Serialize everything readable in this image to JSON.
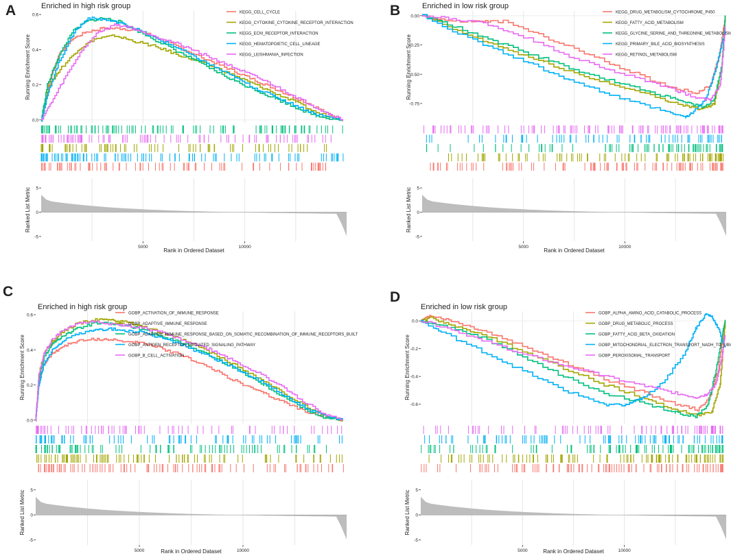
{
  "chart_data": [
    {
      "type": "line",
      "panel_letter": "A",
      "title": "Enriched in high risk group",
      "ylabel_top": "Running Enrichment Score",
      "ylabel_bottom": "Ranked List Metric",
      "xlabel": "Rank in Ordered Dataset",
      "x_ticks": [
        5000,
        10000
      ],
      "x_range": [
        0,
        15000
      ],
      "es_ticks": [
        0.0,
        0.2,
        0.4,
        0.6
      ],
      "es_tick_labels": [
        "0.0",
        "0.2",
        "0.4",
        "0.6"
      ],
      "es_range": [
        -0.02,
        0.62
      ],
      "metric_ticks": [
        5,
        0,
        -5
      ],
      "metric_range": [
        -6,
        7
      ],
      "metric_shape": "high",
      "series": [
        {
          "name": "KEGG_CELL_CYCLE",
          "color": "#F8766D",
          "x": [
            0,
            400,
            900,
            1500,
            2200,
            3000,
            4000,
            5000,
            6000,
            7000,
            8000,
            9000,
            10000,
            11000,
            12000,
            13000,
            14000,
            14800
          ],
          "y": [
            0.0,
            0.22,
            0.38,
            0.46,
            0.5,
            0.52,
            0.52,
            0.5,
            0.45,
            0.4,
            0.35,
            0.3,
            0.25,
            0.2,
            0.15,
            0.1,
            0.04,
            0.0
          ],
          "hit_bands": [
            4
          ]
        },
        {
          "name": "KEGG_CYTOKINE_CYTOKINE_RECEPTOR_INTERACTION",
          "color": "#A3A500",
          "x": [
            0,
            400,
            1000,
            1800,
            2600,
            3600,
            4500,
            5500,
            6500,
            7500,
            8500,
            9500,
            10500,
            11500,
            12500,
            13500,
            14800
          ],
          "y": [
            0.0,
            0.2,
            0.3,
            0.4,
            0.46,
            0.48,
            0.45,
            0.42,
            0.38,
            0.34,
            0.3,
            0.25,
            0.2,
            0.15,
            0.1,
            0.04,
            0.0
          ],
          "hit_bands": [
            2
          ]
        },
        {
          "name": "KEGG_ECM_RECEPTOR_INTERACTION",
          "color": "#00BF7D",
          "x": [
            0,
            300,
            800,
            1500,
            2200,
            3000,
            3800,
            4500,
            5500,
            6500,
            7500,
            8500,
            9500,
            10500,
            11500,
            12500,
            13500,
            14800
          ],
          "y": [
            0.0,
            0.2,
            0.35,
            0.5,
            0.56,
            0.58,
            0.56,
            0.52,
            0.46,
            0.4,
            0.34,
            0.28,
            0.22,
            0.17,
            0.12,
            0.07,
            0.02,
            0.0
          ],
          "hit_bands": [
            0
          ]
        },
        {
          "name": "KEGG_HEMATOPOIETIC_CELL_LINEAGE",
          "color": "#00B0F6",
          "x": [
            0,
            400,
            900,
            1600,
            2300,
            3100,
            3900,
            4600,
            5500,
            6500,
            7500,
            8500,
            9500,
            10500,
            11500,
            12500,
            13500,
            14800
          ],
          "y": [
            0.0,
            0.18,
            0.34,
            0.5,
            0.58,
            0.57,
            0.55,
            0.52,
            0.47,
            0.42,
            0.36,
            0.3,
            0.24,
            0.18,
            0.13,
            0.08,
            0.03,
            0.0
          ],
          "hit_bands": [
            3
          ]
        },
        {
          "name": "KEGG_LEISHMANIA_INFECTION",
          "color": "#E76BF3",
          "x": [
            0,
            500,
            1200,
            2000,
            2800,
            3600,
            4300,
            5000,
            6000,
            7000,
            8000,
            9000,
            10000,
            11000,
            12000,
            13000,
            14000,
            14800
          ],
          "y": [
            0.0,
            0.1,
            0.25,
            0.4,
            0.5,
            0.54,
            0.53,
            0.5,
            0.46,
            0.42,
            0.37,
            0.32,
            0.27,
            0.22,
            0.16,
            0.1,
            0.04,
            0.0
          ],
          "hit_bands": [
            1
          ]
        }
      ]
    },
    {
      "type": "line",
      "panel_letter": "B",
      "title": "Enriched in low risk group",
      "ylabel_top": "Running Enrichment Score",
      "ylabel_bottom": "Ranked List Metric",
      "xlabel": "Rank in Ordered Dataset",
      "x_ticks": [
        5000,
        10000
      ],
      "x_range": [
        0,
        15000
      ],
      "es_ticks": [
        0.0,
        -0.25,
        -0.5,
        -0.75
      ],
      "es_tick_labels": [
        "0.00",
        "-0.25",
        "-0.50",
        "-0.75"
      ],
      "es_range": [
        -0.92,
        0.04
      ],
      "metric_ticks": [
        5,
        0,
        -5
      ],
      "metric_range": [
        -6,
        7
      ],
      "metric_shape": "high",
      "series": [
        {
          "name": "KEGG_DRUG_METABOLISM_CYTOCHROME_P450",
          "color": "#F8766D",
          "x": [
            0,
            1500,
            3000,
            4000,
            6000,
            8000,
            10000,
            12000,
            13500,
            14200,
            14700,
            14950
          ],
          "y": [
            0.0,
            -0.05,
            -0.05,
            -0.05,
            -0.18,
            -0.32,
            -0.46,
            -0.6,
            -0.66,
            -0.6,
            -0.3,
            0.0
          ],
          "hit_bands": [
            4
          ]
        },
        {
          "name": "KEGG_FATTY_ACID_METABOLISM",
          "color": "#A3A500",
          "x": [
            0,
            2000,
            4000,
            6000,
            8000,
            10000,
            12000,
            13000,
            13800,
            14400,
            14800,
            14950
          ],
          "y": [
            0.0,
            -0.15,
            -0.28,
            -0.4,
            -0.52,
            -0.62,
            -0.72,
            -0.77,
            -0.8,
            -0.75,
            -0.4,
            0.0
          ],
          "hit_bands": [
            3
          ]
        },
        {
          "name": "KEGG_GLYCINE_SERINE_AND_THREONINE_METABOLISM",
          "color": "#00BF7D",
          "x": [
            0,
            2000,
            4000,
            6000,
            8000,
            10000,
            12000,
            13000,
            13800,
            14400,
            14800,
            14950
          ],
          "y": [
            0.0,
            -0.12,
            -0.25,
            -0.37,
            -0.49,
            -0.59,
            -0.69,
            -0.74,
            -0.78,
            -0.72,
            -0.4,
            0.0
          ],
          "hit_bands": [
            2
          ]
        },
        {
          "name": "KEGG_PRIMARY_BILE_ACID_BIOSYNTHESIS",
          "color": "#00B0F6",
          "x": [
            0,
            2000,
            4000,
            6000,
            8000,
            10000,
            12000,
            13000,
            13400,
            14000,
            14500,
            14950
          ],
          "y": [
            0.0,
            -0.17,
            -0.32,
            -0.46,
            -0.6,
            -0.72,
            -0.82,
            -0.87,
            -0.82,
            -0.7,
            -0.45,
            -0.1
          ],
          "hit_bands": [
            1
          ]
        },
        {
          "name": "KEGG_RETINOL_METABOLISM",
          "color": "#E76BF3",
          "x": [
            0,
            1500,
            3000,
            5000,
            7000,
            9000,
            11000,
            12500,
            13500,
            14200,
            14700,
            14950
          ],
          "y": [
            0.0,
            -0.03,
            -0.06,
            -0.18,
            -0.33,
            -0.45,
            -0.56,
            -0.64,
            -0.7,
            -0.72,
            -0.6,
            -0.1
          ],
          "hit_bands": [
            0
          ]
        }
      ]
    },
    {
      "type": "line",
      "panel_letter": "C",
      "title": "Enriched in high risk group",
      "ylabel_top": "Running Enrichment Score",
      "ylabel_bottom": "Ranked List Metric",
      "xlabel": "Rank in Ordered Dataset",
      "x_ticks": [
        5000,
        10000
      ],
      "x_range": [
        0,
        15000
      ],
      "es_ticks": [
        0.0,
        0.2,
        0.4,
        0.6
      ],
      "es_tick_labels": [
        "0.0",
        "0.2",
        "0.4",
        "0.6"
      ],
      "es_range": [
        -0.02,
        0.62
      ],
      "metric_ticks": [
        5,
        0,
        -5
      ],
      "metric_range": [
        -6,
        7
      ],
      "metric_shape": "high",
      "series": [
        {
          "name": "GOBP_ACTIVATION_OF_IMMUNE_RESPONSE",
          "color": "#F8766D",
          "x": [
            0,
            150,
            400,
            800,
            1300,
            2000,
            2800,
            3500,
            4200,
            5000,
            6000,
            7000,
            8000,
            9000,
            10000,
            11000,
            12000,
            13000,
            14000,
            14800
          ],
          "y": [
            0.0,
            0.22,
            0.32,
            0.38,
            0.42,
            0.45,
            0.46,
            0.46,
            0.45,
            0.44,
            0.41,
            0.37,
            0.32,
            0.26,
            0.2,
            0.15,
            0.1,
            0.05,
            0.02,
            0.0
          ],
          "hit_bands": [
            4
          ]
        },
        {
          "name": "GOBP_ADAPTIVE_IMMUNE_RESPONSE",
          "color": "#A3A500",
          "x": [
            0,
            150,
            400,
            800,
            1300,
            2000,
            2800,
            3500,
            4200,
            5000,
            6000,
            7000,
            8000,
            9000,
            10000,
            11000,
            12000,
            13000,
            14000,
            14800
          ],
          "y": [
            0.0,
            0.26,
            0.38,
            0.45,
            0.5,
            0.55,
            0.57,
            0.57,
            0.56,
            0.54,
            0.5,
            0.46,
            0.41,
            0.35,
            0.29,
            0.22,
            0.15,
            0.08,
            0.02,
            0.0
          ],
          "hit_bands": [
            3
          ]
        },
        {
          "name": "GOBP_ADAPTIVE_IMMUNE_RESPONSE_BASED_ON_SOMATIC_RECOMBINATION_OF_IMMUNE_RECEPTORS_BUILT",
          "color": "#00BF7D",
          "x": [
            0,
            150,
            400,
            800,
            1300,
            2000,
            2800,
            3500,
            4200,
            5000,
            6000,
            7000,
            8000,
            9000,
            10000,
            11000,
            12000,
            13000,
            14000,
            14800
          ],
          "y": [
            0.0,
            0.24,
            0.36,
            0.43,
            0.48,
            0.52,
            0.55,
            0.55,
            0.54,
            0.52,
            0.48,
            0.44,
            0.39,
            0.33,
            0.27,
            0.2,
            0.13,
            0.06,
            0.01,
            0.0
          ],
          "hit_bands": [
            2
          ]
        },
        {
          "name": "GOBP_ANTIGEN_RECEPTOR_MEDIATED_SIGNALING_PATHWAY",
          "color": "#00B0F6",
          "x": [
            0,
            150,
            400,
            800,
            1300,
            2000,
            2800,
            3500,
            4200,
            5000,
            6000,
            7000,
            8000,
            9000,
            10000,
            11000,
            12000,
            13000,
            14000,
            14800
          ],
          "y": [
            0.0,
            0.2,
            0.32,
            0.4,
            0.45,
            0.49,
            0.51,
            0.52,
            0.51,
            0.5,
            0.47,
            0.43,
            0.38,
            0.33,
            0.27,
            0.21,
            0.14,
            0.07,
            0.02,
            0.0
          ],
          "hit_bands": [
            1
          ]
        },
        {
          "name": "GOBP_B_CELL_ACTIVATION",
          "color": "#E76BF3",
          "x": [
            0,
            150,
            400,
            800,
            1300,
            2000,
            2800,
            3500,
            4200,
            5000,
            6000,
            7000,
            8000,
            9000,
            10000,
            11000,
            12000,
            13000,
            14000,
            14800
          ],
          "y": [
            0.0,
            0.25,
            0.38,
            0.46,
            0.51,
            0.55,
            0.56,
            0.55,
            0.54,
            0.53,
            0.5,
            0.46,
            0.42,
            0.37,
            0.31,
            0.25,
            0.18,
            0.1,
            0.03,
            0.0
          ],
          "hit_bands": [
            0
          ]
        }
      ]
    },
    {
      "type": "line",
      "panel_letter": "D",
      "title": "Enriched in low risk group",
      "ylabel_top": "Running Enrichment Score",
      "ylabel_bottom": "Ranked List Metric",
      "xlabel": "Rank in Ordered Dataset",
      "x_ticks": [
        5000,
        10000
      ],
      "x_range": [
        0,
        15000
      ],
      "es_ticks": [
        0.0,
        -0.2,
        -0.4,
        -0.6
      ],
      "es_tick_labels": [
        "0.0",
        "-0.2",
        "-0.4",
        "-0.6"
      ],
      "es_range": [
        -0.74,
        0.07
      ],
      "metric_ticks": [
        5,
        0,
        -5
      ],
      "metric_range": [
        -6,
        7
      ],
      "metric_shape": "low",
      "series": [
        {
          "name": "GOBP_ALPHA_AMINO_ACID_CATABOLIC_PROCESS",
          "color": "#F8766D",
          "x": [
            0,
            500,
            1500,
            3000,
            5000,
            7000,
            9000,
            11000,
            12500,
            13600,
            14200,
            14600,
            14950
          ],
          "y": [
            0.0,
            0.04,
            0.0,
            -0.07,
            -0.18,
            -0.3,
            -0.42,
            -0.52,
            -0.6,
            -0.64,
            -0.55,
            -0.35,
            0.0
          ],
          "hit_bands": [
            4
          ]
        },
        {
          "name": "GOBP_DRUG_METABOLIC_PROCESS",
          "color": "#A3A500",
          "x": [
            0,
            500,
            1500,
            3000,
            5000,
            7000,
            9000,
            11000,
            12500,
            13600,
            14300,
            14700,
            14950
          ],
          "y": [
            0.0,
            0.02,
            -0.03,
            -0.1,
            -0.22,
            -0.34,
            -0.46,
            -0.56,
            -0.64,
            -0.68,
            -0.65,
            -0.45,
            0.0
          ],
          "hit_bands": [
            3
          ]
        },
        {
          "name": "GOBP_FATTY_ACID_BETA_OXIDATION",
          "color": "#00BF7D",
          "x": [
            0,
            1500,
            3000,
            5000,
            7000,
            9000,
            11000,
            12500,
            13500,
            14100,
            14500,
            14800,
            14950
          ],
          "y": [
            0.0,
            -0.05,
            -0.12,
            -0.26,
            -0.4,
            -0.52,
            -0.6,
            -0.66,
            -0.69,
            -0.6,
            -0.35,
            -0.1,
            0.0
          ],
          "hit_bands": [
            2
          ]
        },
        {
          "name": "GOBP_MITOCHONDRIAL_ELECTRON_TRANSPORT_NADH_TO_UBIQU",
          "color": "#00B0F6",
          "x": [
            0,
            1000,
            3000,
            5000,
            7000,
            9000,
            10000,
            10500,
            11000,
            12000,
            13000,
            13500,
            14000,
            14300,
            14600,
            14950
          ],
          "y": [
            0.0,
            -0.08,
            -0.22,
            -0.36,
            -0.5,
            -0.6,
            -0.61,
            -0.58,
            -0.55,
            -0.42,
            -0.22,
            -0.05,
            0.05,
            0.03,
            -0.05,
            -0.2
          ],
          "hit_bands": [
            1
          ]
        },
        {
          "name": "GOBP_PEROXISOMAL_TRANSPORT",
          "color": "#E76BF3",
          "x": [
            0,
            1500,
            3000,
            5000,
            7000,
            9000,
            11000,
            12500,
            13500,
            14000,
            14500,
            14800,
            14950
          ],
          "y": [
            0.0,
            -0.06,
            -0.14,
            -0.24,
            -0.32,
            -0.4,
            -0.47,
            -0.52,
            -0.55,
            -0.53,
            -0.45,
            -0.25,
            -0.1
          ],
          "hit_bands": [
            0
          ]
        }
      ]
    }
  ]
}
